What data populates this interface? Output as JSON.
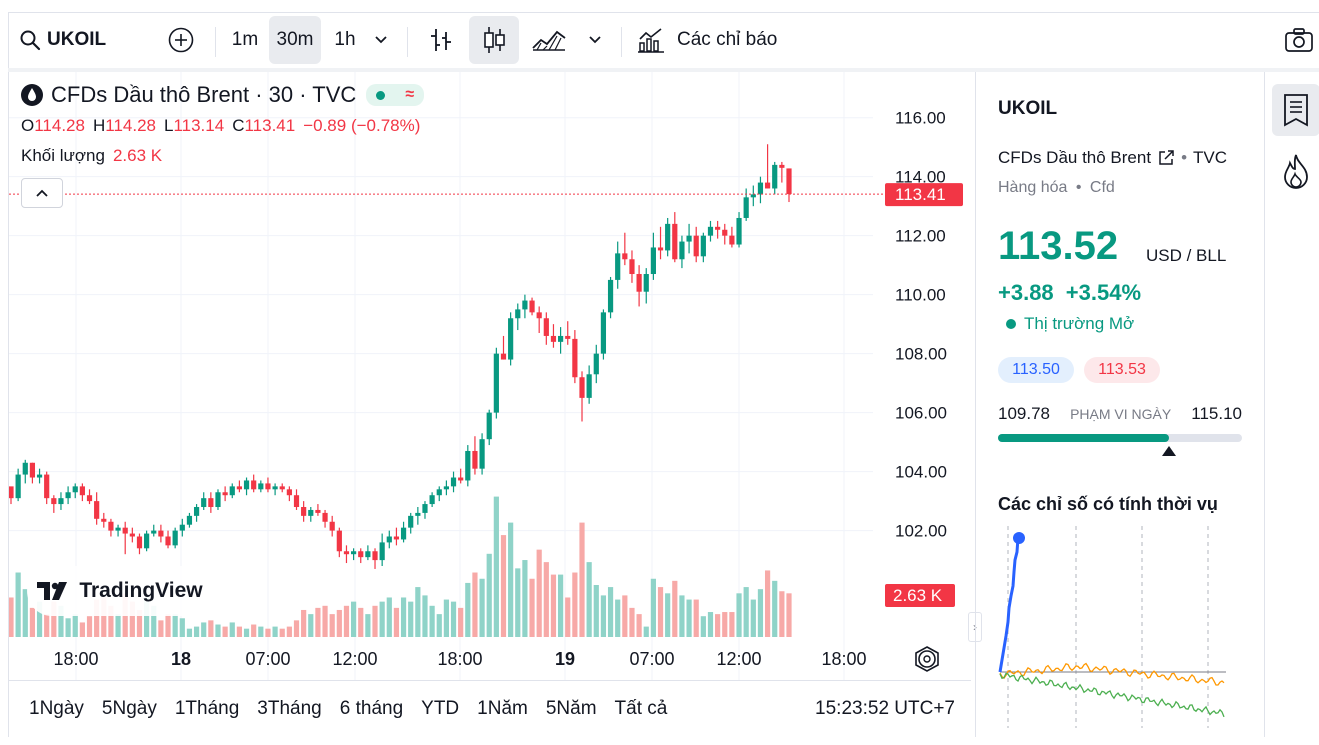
{
  "toolbar": {
    "symbol": "UKOIL",
    "intervals": [
      "1m",
      "30m",
      "1h"
    ],
    "active_interval": "30m",
    "indicators_label": "Các chỉ báo"
  },
  "chart": {
    "title": "CFDs Dầu thô Brent · 30 · TVC",
    "ohlc": {
      "o_label": "O",
      "o": "114.28",
      "h_label": "H",
      "h": "114.28",
      "l_label": "L",
      "l": "113.14",
      "c_label": "C",
      "c": "113.41",
      "change": "−0.89 (−0.78%)"
    },
    "volume_label": "Khối lượng",
    "volume_value": "2.63 K",
    "price_labels": [
      "116.00",
      "114.00",
      "112.00",
      "110.00",
      "108.00",
      "106.00",
      "104.00",
      "102.00"
    ],
    "current_price_tag": "113.41",
    "volume_tag": "2.63 K",
    "time_labels": [
      {
        "t": "18:00",
        "bold": false
      },
      {
        "t": "18",
        "bold": true
      },
      {
        "t": "07:00",
        "bold": false
      },
      {
        "t": "12:00",
        "bold": false
      },
      {
        "t": "18:00",
        "bold": false
      },
      {
        "t": "19",
        "bold": true
      },
      {
        "t": "07:00",
        "bold": false
      },
      {
        "t": "12:00",
        "bold": false
      },
      {
        "t": "18:00",
        "bold": false
      }
    ],
    "logo_text": "TradingView",
    "colors": {
      "up": "#089981",
      "down": "#f23645",
      "vol_up": "#8fd3c8",
      "vol_down": "#f7a9a7"
    }
  },
  "chart_data": {
    "type": "candlestick",
    "ylim": [
      100.8,
      116.6
    ],
    "candles": [
      [
        103.5,
        103.4,
        102.9,
        103.1
      ],
      [
        103.1,
        104.1,
        103.0,
        103.9
      ],
      [
        103.9,
        104.4,
        103.6,
        104.3
      ],
      [
        104.3,
        104.3,
        103.6,
        103.8
      ],
      [
        103.8,
        104.1,
        103.6,
        103.9
      ],
      [
        103.9,
        104.0,
        102.9,
        103.1
      ],
      [
        103.1,
        103.2,
        102.6,
        102.9
      ],
      [
        102.9,
        103.3,
        102.7,
        103.1
      ],
      [
        103.1,
        103.5,
        102.9,
        103.3
      ],
      [
        103.3,
        103.6,
        103.1,
        103.5
      ],
      [
        103.5,
        103.6,
        103.0,
        103.2
      ],
      [
        103.2,
        103.4,
        102.9,
        103.0
      ],
      [
        103.0,
        103.3,
        102.2,
        102.4
      ],
      [
        102.4,
        102.6,
        102.1,
        102.3
      ],
      [
        102.3,
        102.4,
        101.8,
        102.0
      ],
      [
        102.0,
        102.2,
        101.8,
        102.1
      ],
      [
        102.1,
        102.3,
        101.2,
        101.9
      ],
      [
        101.9,
        102.1,
        101.6,
        101.8
      ],
      [
        101.8,
        101.9,
        101.2,
        101.4
      ],
      [
        101.4,
        102.0,
        101.3,
        101.9
      ],
      [
        101.9,
        102.2,
        101.8,
        102.0
      ],
      [
        102.0,
        102.2,
        101.6,
        101.8
      ],
      [
        101.8,
        102.0,
        101.4,
        101.5
      ],
      [
        101.5,
        102.1,
        101.4,
        102.0
      ],
      [
        102.0,
        102.4,
        101.8,
        102.2
      ],
      [
        102.2,
        102.6,
        102.1,
        102.5
      ],
      [
        102.5,
        102.9,
        102.3,
        102.8
      ],
      [
        102.8,
        103.3,
        102.7,
        103.1
      ],
      [
        103.1,
        103.3,
        102.6,
        102.8
      ],
      [
        102.8,
        103.4,
        102.7,
        103.3
      ],
      [
        103.3,
        103.5,
        103.0,
        103.2
      ],
      [
        103.2,
        103.6,
        103.1,
        103.5
      ],
      [
        103.5,
        103.7,
        103.3,
        103.4
      ],
      [
        103.4,
        103.8,
        103.2,
        103.7
      ],
      [
        103.7,
        103.9,
        103.3,
        103.4
      ],
      [
        103.4,
        103.7,
        103.3,
        103.6
      ],
      [
        103.6,
        103.8,
        103.3,
        103.4
      ],
      [
        103.4,
        103.6,
        103.2,
        103.5
      ],
      [
        103.5,
        103.6,
        103.3,
        103.4
      ],
      [
        103.4,
        103.5,
        103.0,
        103.2
      ],
      [
        103.2,
        103.4,
        102.7,
        102.8
      ],
      [
        102.8,
        103.0,
        102.3,
        102.5
      ],
      [
        102.5,
        102.8,
        102.3,
        102.7
      ],
      [
        102.7,
        102.9,
        102.5,
        102.6
      ],
      [
        102.6,
        102.7,
        102.1,
        102.3
      ],
      [
        102.3,
        102.5,
        101.8,
        102.0
      ],
      [
        102.0,
        102.1,
        101.1,
        101.3
      ],
      [
        101.3,
        101.5,
        100.9,
        101.2
      ],
      [
        101.2,
        101.4,
        101.0,
        101.3
      ],
      [
        101.3,
        101.4,
        100.9,
        101.1
      ],
      [
        101.1,
        101.5,
        101.0,
        101.3
      ],
      [
        101.3,
        101.4,
        100.7,
        101.0
      ],
      [
        101.0,
        101.9,
        100.8,
        101.6
      ],
      [
        101.6,
        102.0,
        101.4,
        101.8
      ],
      [
        101.8,
        102.1,
        101.5,
        101.7
      ],
      [
        101.7,
        102.3,
        101.6,
        102.1
      ],
      [
        102.1,
        102.6,
        101.9,
        102.5
      ],
      [
        102.5,
        102.8,
        102.2,
        102.6
      ],
      [
        102.6,
        103.0,
        102.4,
        102.9
      ],
      [
        102.9,
        103.3,
        102.8,
        103.2
      ],
      [
        103.2,
        103.5,
        103.0,
        103.4
      ],
      [
        103.4,
        103.7,
        103.2,
        103.5
      ],
      [
        103.5,
        104.0,
        103.3,
        103.8
      ],
      [
        103.8,
        104.1,
        103.6,
        103.7
      ],
      [
        103.7,
        104.9,
        103.5,
        104.7
      ],
      [
        104.7,
        105.2,
        103.9,
        104.1
      ],
      [
        104.1,
        105.3,
        103.9,
        105.1
      ],
      [
        105.1,
        106.1,
        104.9,
        106.0
      ],
      [
        106.0,
        108.2,
        105.8,
        108.0
      ],
      [
        108.0,
        108.6,
        107.8,
        107.8
      ],
      [
        107.8,
        109.4,
        107.6,
        109.2
      ],
      [
        109.2,
        109.7,
        108.8,
        109.5
      ],
      [
        109.5,
        110.0,
        109.2,
        109.8
      ],
      [
        109.8,
        109.9,
        109.3,
        109.4
      ],
      [
        109.4,
        109.6,
        108.7,
        109.2
      ],
      [
        109.2,
        109.4,
        108.3,
        108.6
      ],
      [
        108.6,
        109.0,
        108.2,
        108.4
      ],
      [
        108.4,
        108.9,
        108.0,
        108.6
      ],
      [
        108.6,
        109.1,
        108.3,
        108.5
      ],
      [
        108.5,
        108.8,
        107.0,
        107.2
      ],
      [
        107.2,
        107.4,
        105.7,
        106.5
      ],
      [
        106.5,
        107.6,
        106.3,
        107.3
      ],
      [
        107.3,
        108.3,
        107.0,
        108.0
      ],
      [
        108.0,
        109.5,
        107.8,
        109.4
      ],
      [
        109.4,
        110.6,
        109.2,
        110.5
      ],
      [
        110.5,
        111.8,
        110.2,
        111.4
      ],
      [
        111.4,
        112.1,
        111.0,
        111.2
      ],
      [
        111.2,
        111.5,
        110.4,
        110.7
      ],
      [
        110.7,
        111.0,
        109.6,
        110.1
      ],
      [
        110.1,
        110.9,
        109.7,
        110.7
      ],
      [
        110.7,
        112.1,
        110.5,
        111.6
      ],
      [
        111.6,
        112.3,
        111.2,
        111.5
      ],
      [
        111.5,
        112.6,
        111.3,
        112.4
      ],
      [
        112.4,
        112.8,
        111.1,
        111.2
      ],
      [
        111.2,
        112.0,
        110.9,
        111.8
      ],
      [
        111.8,
        112.4,
        111.4,
        112.0
      ],
      [
        112.0,
        112.3,
        111.1,
        111.3
      ],
      [
        111.3,
        112.1,
        111.1,
        112.0
      ],
      [
        112.0,
        112.5,
        111.8,
        112.3
      ],
      [
        112.3,
        112.5,
        111.9,
        112.2
      ],
      [
        112.2,
        112.4,
        111.7,
        112.0
      ],
      [
        112.0,
        112.3,
        111.6,
        111.7
      ],
      [
        111.7,
        112.8,
        111.6,
        112.6
      ],
      [
        112.6,
        113.6,
        112.5,
        113.3
      ],
      [
        113.3,
        113.7,
        113.0,
        113.4
      ],
      [
        113.4,
        114.0,
        113.1,
        113.8
      ],
      [
        113.8,
        115.1,
        113.6,
        113.6
      ],
      [
        113.6,
        114.5,
        113.4,
        114.4
      ],
      [
        114.4,
        114.5,
        113.8,
        114.3
      ],
      [
        114.28,
        114.28,
        113.14,
        113.41
      ]
    ],
    "volumes": [
      0.38,
      0.62,
      0.46,
      0.28,
      0.34,
      0.22,
      0.34,
      0.3,
      0.18,
      0.22,
      0.14,
      0.2,
      0.36,
      0.38,
      0.3,
      0.22,
      0.42,
      0.34,
      0.26,
      0.38,
      0.3,
      0.16,
      0.22,
      0.22,
      0.18,
      0.08,
      0.1,
      0.14,
      0.16,
      0.12,
      0.1,
      0.14,
      0.1,
      0.08,
      0.12,
      0.1,
      0.08,
      0.1,
      0.08,
      0.1,
      0.16,
      0.26,
      0.22,
      0.28,
      0.3,
      0.22,
      0.26,
      0.3,
      0.34,
      0.28,
      0.22,
      0.3,
      0.34,
      0.38,
      0.28,
      0.38,
      0.34,
      0.48,
      0.4,
      0.3,
      0.22,
      0.36,
      0.34,
      0.28,
      0.52,
      0.62,
      0.56,
      0.8,
      1.35,
      0.98,
      1.1,
      0.66,
      0.74,
      0.56,
      0.84,
      0.72,
      0.6,
      0.6,
      0.38,
      0.62,
      1.1,
      0.72,
      0.5,
      0.4,
      0.48,
      0.36,
      0.4,
      0.28,
      0.22,
      0.1,
      0.56,
      0.48,
      0.42,
      0.54,
      0.4,
      0.36,
      0.36,
      0.2,
      0.24,
      0.22,
      0.24,
      0.24,
      0.42,
      0.48,
      0.36,
      0.46,
      0.64,
      0.54,
      0.44,
      0.42
    ]
  },
  "range_buttons": [
    "1Ngày",
    "5Ngày",
    "1Tháng",
    "3Tháng",
    "6 tháng",
    "YTD",
    "1Năm",
    "5Năm",
    "Tất cả"
  ],
  "clock": "15:23:52 UTC+7",
  "panel": {
    "symbol": "UKOIL",
    "name": "CFDs Dầu thô Brent",
    "exchange": "TVC",
    "category": "Hàng hóa",
    "subcategory": "Cfd",
    "price": "113.52",
    "unit": "USD / BLL",
    "change": "+3.88",
    "change_pct": "+3.54%",
    "market_status": "Thị trường Mở",
    "bid": "113.50",
    "ask": "113.53",
    "day_low": "109.78",
    "day_range_label": "PHẠM VI NGÀY",
    "day_high": "115.10",
    "day_range_fill_fraction": 0.7,
    "seasonal_title": "Các chỉ số có tính thời vụ",
    "seasonal_colors": {
      "current": "#2962ff",
      "y1": "#ff9800",
      "y2": "#4caf50"
    }
  }
}
